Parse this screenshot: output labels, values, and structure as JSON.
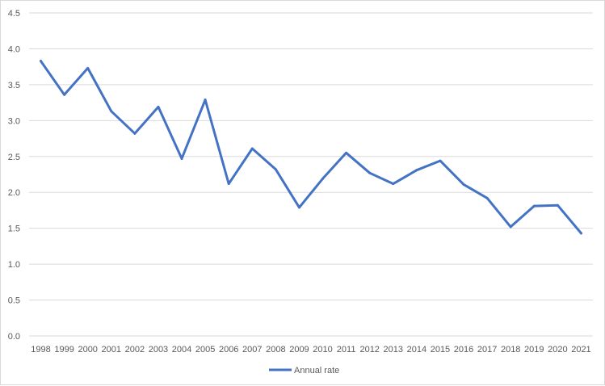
{
  "chart_data": {
    "type": "line",
    "title": "",
    "xlabel": "",
    "ylabel": "",
    "categories": [
      "1998",
      "1999",
      "2000",
      "2001",
      "2002",
      "2003",
      "2004",
      "2005",
      "2006",
      "2007",
      "2008",
      "2009",
      "2010",
      "2011",
      "2012",
      "2013",
      "2014",
      "2015",
      "2016",
      "2017",
      "2018",
      "2019",
      "2020",
      "2021"
    ],
    "series": [
      {
        "name": "Annual rate",
        "color": "#4472c4",
        "values": [
          3.83,
          3.36,
          3.73,
          3.13,
          2.82,
          3.19,
          2.47,
          3.29,
          2.12,
          2.61,
          2.32,
          1.79,
          2.19,
          2.55,
          2.27,
          2.12,
          2.31,
          2.44,
          2.11,
          1.92,
          1.52,
          1.81,
          1.82,
          1.43
        ]
      }
    ],
    "ylim": [
      0,
      4.5
    ],
    "yticks": [
      "0.0",
      "0.5",
      "1.0",
      "1.5",
      "2.0",
      "2.5",
      "3.0",
      "3.5",
      "4.0",
      "4.5"
    ],
    "grid": true,
    "legend_position": "bottom"
  }
}
